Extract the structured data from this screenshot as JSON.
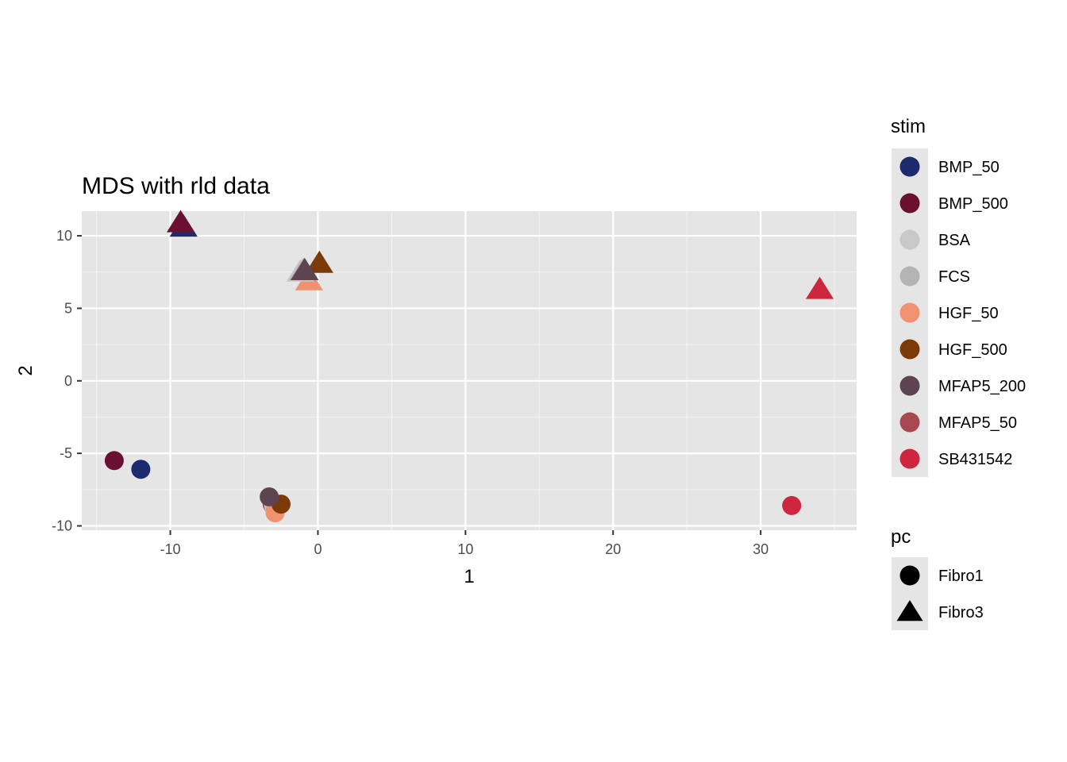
{
  "chart_data": {
    "type": "scatter",
    "title": "MDS with rld data",
    "xlabel": "1",
    "ylabel": "2",
    "xlim": [
      -16,
      36.5
    ],
    "ylim": [
      -10.3,
      11.7
    ],
    "x_ticks": [
      -10,
      0,
      10,
      20,
      30
    ],
    "x_tick_labels": [
      "-10",
      "0",
      "10",
      "20",
      "30"
    ],
    "y_ticks": [
      10,
      5,
      0,
      -5,
      -10
    ],
    "y_tick_labels": [
      "10",
      "5",
      "0",
      "-5",
      "-10"
    ],
    "grid": true,
    "legend_position": "right",
    "color_legend": {
      "title": "stim",
      "items": [
        {
          "label": "BMP_50",
          "color": "#1c2a6e"
        },
        {
          "label": "BMP_500",
          "color": "#6b1030"
        },
        {
          "label": "BSA",
          "color": "#c8c8c8"
        },
        {
          "label": "FCS",
          "color": "#b4b4b4"
        },
        {
          "label": "HGF_50",
          "color": "#f0916f"
        },
        {
          "label": "HGF_500",
          "color": "#7b3a08"
        },
        {
          "label": "MFAP5_200",
          "color": "#5e4350"
        },
        {
          "label": "MFAP5_50",
          "color": "#a84850"
        },
        {
          "label": "SB431542",
          "color": "#cf2640"
        }
      ]
    },
    "shape_legend": {
      "title": "pc",
      "items": [
        {
          "label": "Fibro1",
          "shape": "circle"
        },
        {
          "label": "Fibro3",
          "shape": "triangle"
        }
      ]
    },
    "points": [
      {
        "stim": "MFAP5_50",
        "pc": "Fibro1",
        "x": -3.1,
        "y": -8.5
      },
      {
        "stim": "BSA",
        "pc": "Fibro1",
        "x": -3.0,
        "y": -8.6
      },
      {
        "stim": "FCS",
        "pc": "Fibro1",
        "x": -2.9,
        "y": -8.7
      },
      {
        "stim": "HGF_50",
        "pc": "Fibro1",
        "x": -2.9,
        "y": -9.1
      },
      {
        "stim": "HGF_500",
        "pc": "Fibro1",
        "x": -2.5,
        "y": -8.5
      },
      {
        "stim": "MFAP5_200",
        "pc": "Fibro1",
        "x": -3.3,
        "y": -8.0
      },
      {
        "stim": "BMP_500",
        "pc": "Fibro1",
        "x": -13.8,
        "y": -5.5
      },
      {
        "stim": "BMP_50",
        "pc": "Fibro1",
        "x": -12.0,
        "y": -6.1
      },
      {
        "stim": "SB431542",
        "pc": "Fibro1",
        "x": 32.1,
        "y": -8.6
      },
      {
        "stim": "BMP_50",
        "pc": "Fibro3",
        "x": -9.1,
        "y": 10.6
      },
      {
        "stim": "BMP_500",
        "pc": "Fibro3",
        "x": -9.3,
        "y": 10.9
      },
      {
        "stim": "HGF_50",
        "pc": "Fibro3",
        "x": -0.6,
        "y": 6.9
      },
      {
        "stim": "BSA",
        "pc": "Fibro3",
        "x": -1.2,
        "y": 7.5
      },
      {
        "stim": "FCS",
        "pc": "Fibro3",
        "x": -1.0,
        "y": 7.6
      },
      {
        "stim": "MFAP5_50",
        "pc": "Fibro3",
        "x": -0.9,
        "y": 7.6
      },
      {
        "stim": "HGF_500",
        "pc": "Fibro3",
        "x": 0.1,
        "y": 8.1
      },
      {
        "stim": "MFAP5_200",
        "pc": "Fibro3",
        "x": -0.9,
        "y": 7.6
      },
      {
        "stim": "SB431542",
        "pc": "Fibro3",
        "x": 34.0,
        "y": 6.3
      }
    ]
  }
}
